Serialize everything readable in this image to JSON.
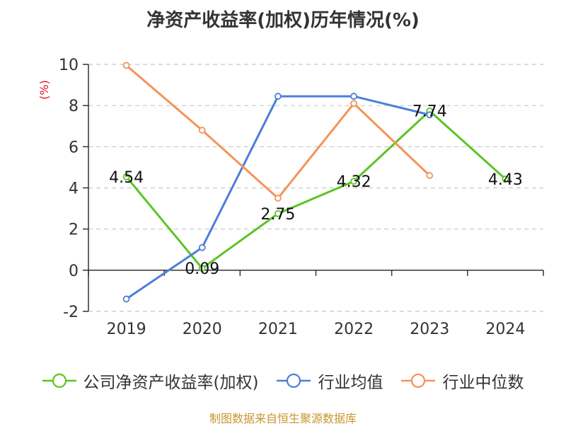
{
  "chart_data": {
    "type": "line",
    "title": "净资产收益率(加权)历年情况(%)",
    "ylabel": "(%)",
    "xlabel": "",
    "categories": [
      "2019",
      "2020",
      "2021",
      "2022",
      "2023",
      "2024"
    ],
    "ylim": [
      -2,
      10
    ],
    "yticks": [
      -2,
      0,
      2,
      4,
      6,
      8,
      10
    ],
    "grid": true,
    "legend_position": "bottom",
    "series": [
      {
        "name": "公司净资产收益率(加权)",
        "color": "#5cc424",
        "values": [
          4.54,
          0.09,
          2.75,
          4.32,
          7.74,
          4.43
        ],
        "labels": [
          "4.54",
          "0.09",
          "2.75",
          "4.32",
          "7.74",
          "4.43"
        ]
      },
      {
        "name": "行业均值",
        "color": "#4a7fd9",
        "values": [
          -1.4,
          1.1,
          8.45,
          8.45,
          7.55,
          null
        ]
      },
      {
        "name": "行业中位数",
        "color": "#f5925a",
        "values": [
          9.95,
          6.8,
          3.5,
          8.1,
          4.6,
          null
        ]
      }
    ],
    "ylabel_color": "#e0141e",
    "source": "制图数据来自恒生聚源数据库"
  }
}
